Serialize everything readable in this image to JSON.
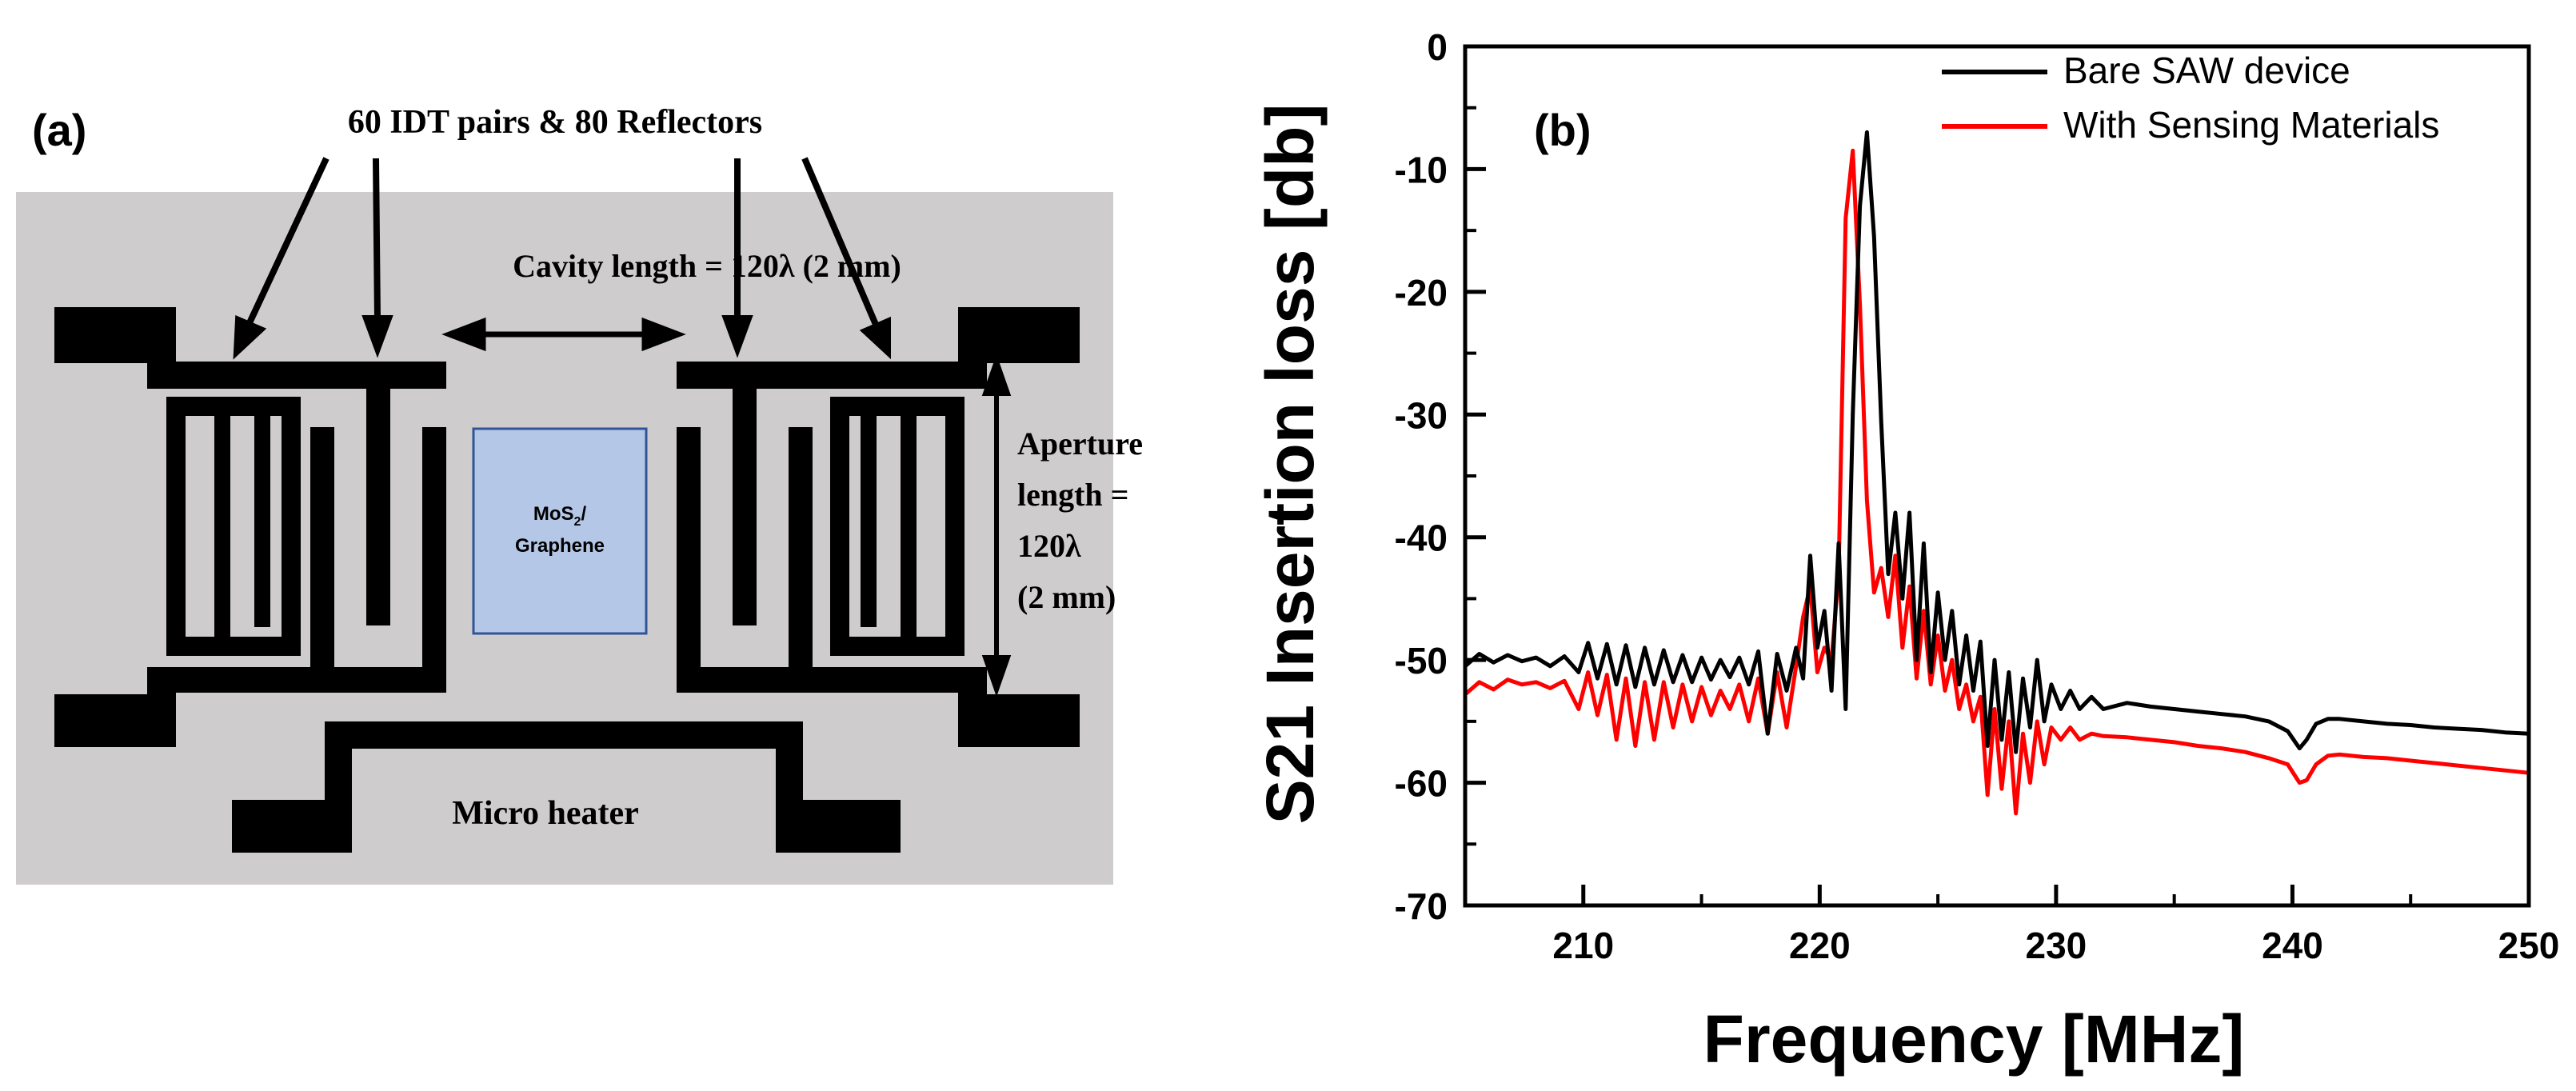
{
  "panel_a": {
    "label": "(a)",
    "idt_label": "60 IDT pairs & 80 Reflectors",
    "cavity_label": "Cavity length = 120λ (2 mm)",
    "aperture_line1": "Aperture",
    "aperture_line2": "length =",
    "aperture_line3": "120λ",
    "aperture_line4": "(2 mm)",
    "sensing_line1_main": "MoS",
    "sensing_line1_sub": "2",
    "sensing_line1_tail": "/",
    "sensing_line2": "Graphene",
    "heater_label": "Micro heater",
    "colors": {
      "substrate": "#cfcccd",
      "metal": "#000000",
      "sensing": "#b4c7e7",
      "sensing_border": "#2f5597"
    }
  },
  "chart_data": {
    "type": "line",
    "panel_label": "(b)",
    "title": "",
    "xlabel": "Frequency [MHz]",
    "ylabel": "S21 Insertion loss [db]",
    "xlim": [
      205,
      250
    ],
    "ylim": [
      -70,
      0
    ],
    "xticks": [
      210,
      220,
      230,
      240,
      250
    ],
    "yticks": [
      0,
      -10,
      -20,
      -30,
      -40,
      -50,
      -60,
      -70
    ],
    "xtick_labels": [
      "210",
      "220",
      "230",
      "240",
      "250"
    ],
    "ytick_labels": [
      "0",
      "-10",
      "-20",
      "-30",
      "-40",
      "-50",
      "-60",
      "-70"
    ],
    "grid": false,
    "legend_position": "top-right",
    "series": [
      {
        "name": "Bare SAW device",
        "color": "#000000",
        "x": [
          205,
          205.6,
          206.2,
          206.8,
          207.4,
          208,
          208.6,
          209.2,
          209.8,
          210.2,
          210.6,
          211.0,
          211.4,
          211.8,
          212.2,
          212.6,
          213.0,
          213.4,
          213.8,
          214.2,
          214.6,
          215.0,
          215.4,
          215.8,
          216.2,
          216.6,
          217.0,
          217.4,
          217.8,
          218.2,
          218.6,
          219.0,
          219.3,
          219.6,
          219.9,
          220.2,
          220.5,
          220.8,
          221.1,
          221.4,
          221.7,
          222.0,
          222.3,
          222.6,
          222.9,
          223.2,
          223.5,
          223.8,
          224.1,
          224.4,
          224.7,
          225.0,
          225.3,
          225.6,
          225.9,
          226.2,
          226.5,
          226.8,
          227.1,
          227.4,
          227.7,
          228.0,
          228.3,
          228.6,
          228.9,
          229.2,
          229.5,
          229.8,
          230.2,
          230.6,
          231.0,
          231.5,
          232.0,
          233,
          234,
          235,
          236,
          237,
          238,
          239,
          239.8,
          240.3,
          240.6,
          241.0,
          241.5,
          242,
          243,
          244,
          245,
          246,
          247,
          248,
          249,
          250
        ],
        "y": [
          -50.5,
          -49.5,
          -50.2,
          -49.6,
          -50.1,
          -49.8,
          -50.5,
          -49.7,
          -51.0,
          -48.6,
          -51.5,
          -48.7,
          -52.0,
          -48.8,
          -52.2,
          -49.0,
          -52.0,
          -49.2,
          -51.8,
          -49.6,
          -51.8,
          -49.8,
          -51.6,
          -50.0,
          -51.4,
          -49.8,
          -52.0,
          -49.3,
          -56.0,
          -49.5,
          -52.5,
          -49.0,
          -51.5,
          -41.5,
          -49.0,
          -46.0,
          -52.5,
          -40.5,
          -54.0,
          -30.0,
          -13.0,
          -7.0,
          -15.5,
          -30.5,
          -43.0,
          -38.0,
          -45.0,
          -38.0,
          -50.0,
          -40.5,
          -51.0,
          -44.5,
          -50.0,
          -46.0,
          -52.0,
          -48.0,
          -52.5,
          -48.5,
          -57.0,
          -50.0,
          -56.5,
          -51.0,
          -57.5,
          -51.5,
          -55.5,
          -50.0,
          -55.0,
          -52.0,
          -54.0,
          -52.5,
          -54.0,
          -53.0,
          -54.0,
          -53.5,
          -53.8,
          -54.0,
          -54.2,
          -54.4,
          -54.6,
          -55.0,
          -55.8,
          -57.2,
          -56.5,
          -55.2,
          -54.8,
          -54.8,
          -55.0,
          -55.2,
          -55.3,
          -55.5,
          -55.6,
          -55.7,
          -55.9,
          -56.0
        ]
      },
      {
        "name": "With Sensing Materials",
        "color": "#ff0000",
        "x": [
          205,
          205.6,
          206.2,
          206.8,
          207.4,
          208,
          208.6,
          209.2,
          209.8,
          210.2,
          210.6,
          211.0,
          211.4,
          211.8,
          212.2,
          212.6,
          213.0,
          213.4,
          213.8,
          214.2,
          214.6,
          215.0,
          215.4,
          215.8,
          216.2,
          216.6,
          217.0,
          217.4,
          217.8,
          218.2,
          218.6,
          219.0,
          219.3,
          219.6,
          219.9,
          220.2,
          220.5,
          220.8,
          221.1,
          221.4,
          221.7,
          222.0,
          222.3,
          222.6,
          222.9,
          223.2,
          223.5,
          223.8,
          224.1,
          224.4,
          224.7,
          225.0,
          225.3,
          225.6,
          225.9,
          226.2,
          226.5,
          226.8,
          227.1,
          227.4,
          227.7,
          228.0,
          228.3,
          228.6,
          228.9,
          229.2,
          229.5,
          229.8,
          230.2,
          230.6,
          231.0,
          231.5,
          232.0,
          233,
          234,
          235,
          236,
          237,
          238,
          239,
          239.8,
          240.3,
          240.6,
          241.0,
          241.5,
          242,
          243,
          244,
          245,
          246,
          247,
          248,
          249,
          250
        ],
        "y": [
          -52.8,
          -51.8,
          -52.4,
          -51.6,
          -52.0,
          -51.8,
          -52.3,
          -51.7,
          -54.0,
          -51.0,
          -54.5,
          -51.2,
          -56.5,
          -51.5,
          -57.0,
          -51.8,
          -56.5,
          -51.8,
          -55.5,
          -52.0,
          -55.0,
          -52.2,
          -54.5,
          -52.5,
          -54.0,
          -52.0,
          -55.0,
          -51.5,
          -56.0,
          -51.0,
          -55.5,
          -50.5,
          -46.5,
          -44.0,
          -51.0,
          -49.0,
          -50.0,
          -43.0,
          -14.0,
          -8.5,
          -21.0,
          -37.0,
          -44.5,
          -42.5,
          -46.5,
          -41.5,
          -49.0,
          -44.0,
          -51.5,
          -46.0,
          -52.0,
          -48.0,
          -52.5,
          -50.0,
          -54.0,
          -52.0,
          -55.0,
          -53.0,
          -61.0,
          -54.0,
          -60.5,
          -55.0,
          -62.5,
          -56.0,
          -60.0,
          -55.0,
          -58.5,
          -55.5,
          -56.5,
          -55.5,
          -56.5,
          -56.0,
          -56.2,
          -56.3,
          -56.5,
          -56.7,
          -57.0,
          -57.2,
          -57.5,
          -58.0,
          -58.5,
          -60.0,
          -59.8,
          -58.5,
          -57.8,
          -57.7,
          -57.9,
          -58.0,
          -58.2,
          -58.4,
          -58.6,
          -58.8,
          -59.0,
          -59.2
        ]
      }
    ]
  }
}
